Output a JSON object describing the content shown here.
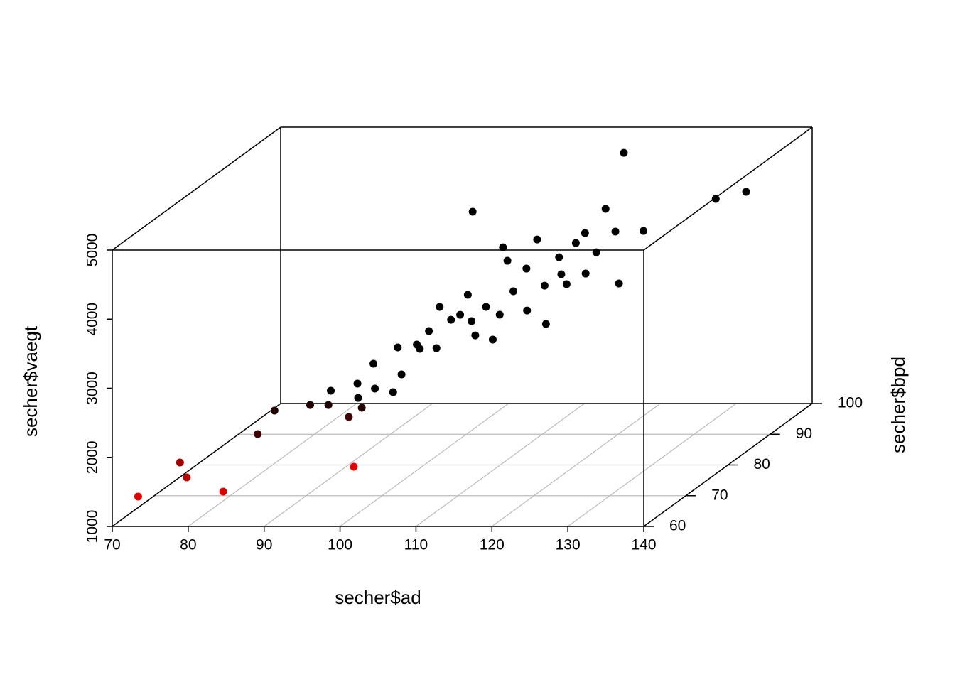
{
  "chart_data": {
    "type": "scatter3d",
    "x_label": "secher$ad",
    "y_label": "secher$bpd",
    "z_label": "secher$vaegt",
    "xlim": [
      70,
      140
    ],
    "xticks": [
      70,
      80,
      90,
      100,
      110,
      120,
      130,
      140
    ],
    "ylim": [
      60,
      100
    ],
    "yticks": [
      60,
      70,
      80,
      90,
      100
    ],
    "zlim": [
      1000,
      5000
    ],
    "zticks": [
      1000,
      2000,
      3000,
      4000,
      5000
    ],
    "grid": true,
    "color_near": "#ff0000",
    "color_far": "#000000",
    "x": [
      72.3,
      75.6,
      77.6,
      83.5,
      82.5,
      83.6,
      100.7,
      88.3,
      90.7,
      94.5,
      95.1,
      88.8,
      91.2,
      92.4,
      93.5,
      92.2,
      95.9,
      95.9,
      94.3,
      96.8,
      98.4,
      98.7,
      100.5,
      101.4,
      97.5,
      104.5,
      103.7,
      106.8,
      102.6,
      104.3,
      105.5,
      106.2,
      106.8,
      107.1,
      109.1,
      110.3,
      111.1,
      112.7,
      112.5,
      112.2,
      113.2,
      112.3,
      113.9,
      114.6,
      114.9,
      120.1,
      116.3,
      115.2,
      120.0,
      127.3,
      131.3,
      102.9,
      101.3,
      100.2,
      98.3
    ],
    "y": [
      62,
      66,
      64,
      62,
      72,
      74,
      62,
      74,
      74,
      72,
      74,
      78,
      80,
      78,
      80,
      82,
      80,
      82,
      84,
      84,
      84,
      86,
      82,
      86,
      96,
      84,
      88,
      84,
      94,
      92,
      88,
      90,
      92,
      94,
      88,
      90,
      92,
      86,
      90,
      94,
      90,
      96,
      98,
      92,
      94,
      90,
      96,
      100,
      96,
      100,
      100,
      86,
      88,
      86,
      82
    ],
    "z": [
      1343,
      1658,
      1532,
      1415,
      1803,
      2053,
      1775,
      2135,
      2135,
      2050,
      2095,
      2163,
      2177,
      2060,
      2105,
      2376,
      2054,
      2222,
      2524,
      2565,
      2760,
      3021,
      2602,
      2907,
      3954,
      2698,
      2932,
      2637,
      3528,
      3422,
      2819,
      3069,
      3309,
      3641,
      2880,
      3151,
      3473,
      2774,
      3316,
      3590,
      3172,
      3645,
      3906,
      3237,
      3456,
      3182,
      3666,
      4629,
      3676,
      3961,
      4064,
      2815,
      3107,
      2835,
      2592
    ]
  }
}
